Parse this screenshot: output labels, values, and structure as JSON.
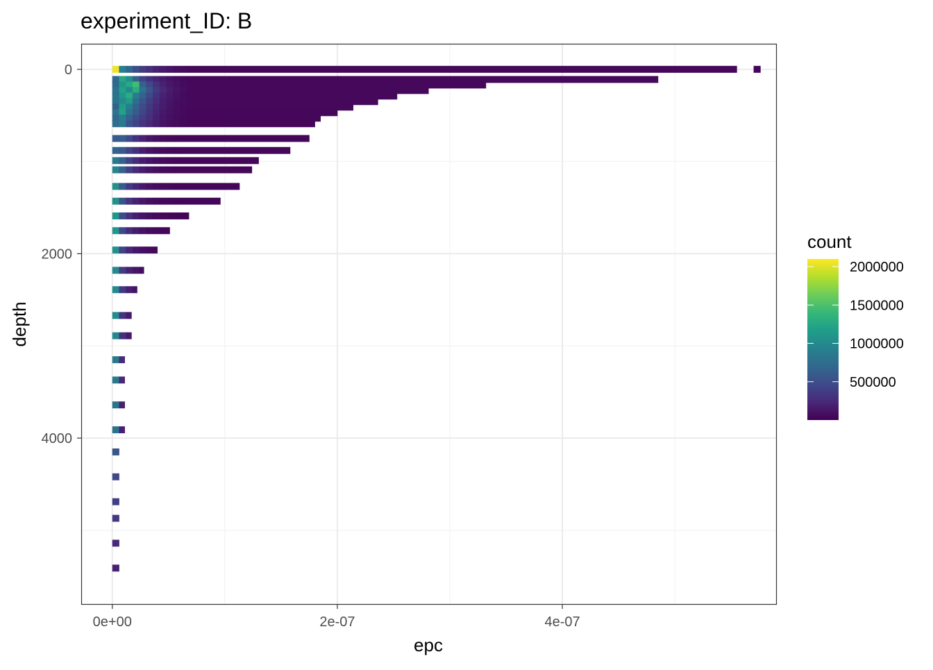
{
  "chart_data": {
    "type": "heatmap",
    "title": "experiment_ID: B",
    "xlabel": "epc",
    "ylabel": "depth",
    "xlim": [
      -2.7e-08,
      5.9e-07
    ],
    "ylim": [
      5800,
      -270
    ],
    "y_reversed": true,
    "grid": true,
    "x_ticks": [
      0,
      2e-07,
      4e-07
    ],
    "x_tick_labels": [
      "0e+00",
      "2e-07",
      "4e-07"
    ],
    "x_minor_ticks": [
      1e-07,
      3e-07,
      5e-07
    ],
    "y_ticks": [
      0,
      2000,
      4000
    ],
    "y_tick_labels": [
      "0",
      "2000",
      "4000"
    ],
    "y_minor_ticks": [
      1000,
      3000,
      5000
    ],
    "bin_width_epc": 6e-09,
    "bin_height_depth": 75,
    "legend": {
      "title": "count",
      "position": "right",
      "colormap": "viridis",
      "range": [
        0,
        2100000
      ],
      "ticks": [
        500000,
        1000000,
        1500000,
        2000000
      ],
      "tick_labels": [
        "500000",
        "1000000",
        "1500000",
        "2000000"
      ]
    },
    "rows": [
      {
        "depth": 0,
        "max_epc": 5.55e-07,
        "counts": [
          2050000,
          900000,
          700000,
          500000,
          380000,
          280000,
          200000,
          150000,
          110000,
          80000,
          60000,
          45000
        ]
      },
      {
        "depth": 110,
        "max_epc": 4.85e-07,
        "counts": [
          700000,
          1250000,
          1050000,
          650000,
          420000,
          300000,
          210000,
          150000,
          105000,
          75000,
          55000,
          40000
        ]
      },
      {
        "depth": 170,
        "max_epc": 3.32e-07,
        "counts": [
          700000,
          1100000,
          1250000,
          1450000,
          650000,
          450000,
          300000,
          200000,
          140000,
          95000,
          65000,
          45000
        ]
      },
      {
        "depth": 230,
        "max_epc": 2.81e-07,
        "counts": [
          800000,
          1200000,
          1000000,
          1300000,
          800000,
          550000,
          360000,
          240000,
          160000,
          110000,
          75000,
          50000
        ]
      },
      {
        "depth": 290,
        "max_epc": 2.53e-07,
        "counts": [
          800000,
          1100000,
          1300000,
          900000,
          650000,
          450000,
          300000,
          200000,
          140000,
          95000,
          65000,
          45000
        ]
      },
      {
        "depth": 350,
        "max_epc": 2.36e-07,
        "counts": [
          800000,
          1000000,
          1150000,
          750000,
          550000,
          390000,
          260000,
          175000,
          120000,
          85000,
          60000,
          42000
        ]
      },
      {
        "depth": 410,
        "max_epc": 2.14e-07,
        "counts": [
          650000,
          1150000,
          900000,
          650000,
          480000,
          340000,
          230000,
          160000,
          110000,
          80000,
          56000,
          40000
        ]
      },
      {
        "depth": 470,
        "max_epc": 2e-07,
        "counts": [
          800000,
          1200000,
          800000,
          600000,
          440000,
          310000,
          210000,
          145000,
          100000,
          72000,
          52000,
          38000
        ]
      },
      {
        "depth": 530,
        "max_epc": 1.85e-07,
        "counts": [
          700000,
          900000,
          650000,
          500000,
          380000,
          280000,
          190000,
          130000,
          90000,
          65000,
          48000,
          35000
        ]
      },
      {
        "depth": 590,
        "max_epc": 1.8e-07,
        "counts": [
          750000,
          850000,
          550000,
          420000,
          310000,
          230000,
          160000,
          110000,
          80000,
          58000,
          42000,
          32000
        ]
      },
      {
        "depth": 750,
        "max_epc": 1.75e-07,
        "counts": [
          600000,
          620000,
          450000,
          300000,
          200000,
          130000,
          90000,
          65000,
          48000,
          38000
        ]
      },
      {
        "depth": 880,
        "max_epc": 1.58e-07,
        "counts": [
          650000,
          600000,
          420000,
          280000,
          180000,
          120000,
          85000,
          62000,
          46000,
          36000
        ]
      },
      {
        "depth": 990,
        "max_epc": 1.3e-07,
        "counts": [
          850000,
          650000,
          420000,
          260000,
          170000,
          115000,
          80000,
          58000,
          44000,
          34000
        ]
      },
      {
        "depth": 1090,
        "max_epc": 1.24e-07,
        "counts": [
          950000,
          650000,
          400000,
          250000,
          160000,
          110000,
          78000,
          56000,
          42000,
          33000
        ]
      },
      {
        "depth": 1270,
        "max_epc": 1.13e-07,
        "counts": [
          1050000,
          600000,
          350000,
          220000,
          140000,
          95000,
          68000,
          50000,
          38000,
          30000
        ]
      },
      {
        "depth": 1430,
        "max_epc": 9.6e-08,
        "counts": [
          1050000,
          550000,
          320000,
          200000,
          130000,
          88000,
          62000,
          46000,
          35000,
          28000
        ]
      },
      {
        "depth": 1590,
        "max_epc": 6.8e-08,
        "counts": [
          1100000,
          500000,
          300000,
          180000,
          115000,
          78000,
          55000,
          40000,
          30000,
          24000
        ]
      },
      {
        "depth": 1750,
        "max_epc": 5.1e-08,
        "counts": [
          1100000,
          450000,
          260000,
          160000,
          100000,
          68000,
          48000,
          35000,
          27000,
          22000
        ]
      },
      {
        "depth": 1960,
        "max_epc": 4e-08,
        "counts": [
          1050000,
          420000,
          230000,
          140000,
          90000,
          60000,
          43000,
          32000,
          25000,
          20000
        ]
      },
      {
        "depth": 2180,
        "max_epc": 2.8e-08,
        "counts": [
          1000000,
          380000,
          200000,
          120000,
          80000,
          55000,
          40000
        ]
      },
      {
        "depth": 2390,
        "max_epc": 2.2e-08,
        "counts": [
          1000000,
          350000,
          180000,
          110000,
          72000,
          50000
        ]
      },
      {
        "depth": 2670,
        "max_epc": 1.7e-08,
        "counts": [
          1000000,
          320000,
          160000,
          100000,
          65000
        ]
      },
      {
        "depth": 2890,
        "max_epc": 1.7e-08,
        "counts": [
          1000000,
          300000,
          150000,
          90000,
          60000
        ]
      },
      {
        "depth": 3150,
        "max_epc": 1.1e-08,
        "counts": [
          850000,
          250000,
          120000
        ]
      },
      {
        "depth": 3370,
        "max_epc": 1.1e-08,
        "counts": [
          850000,
          230000,
          110000
        ]
      },
      {
        "depth": 3640,
        "max_epc": 1.1e-08,
        "counts": [
          800000,
          200000,
          100000
        ]
      },
      {
        "depth": 3910,
        "max_epc": 1.1e-08,
        "counts": [
          800000,
          190000,
          100000
        ]
      },
      {
        "depth": 4150,
        "max_epc": 6e-09,
        "counts": [
          550000
        ]
      },
      {
        "depth": 4420,
        "max_epc": 6e-09,
        "counts": [
          450000
        ]
      },
      {
        "depth": 4690,
        "max_epc": 6e-09,
        "counts": [
          400000
        ]
      },
      {
        "depth": 4870,
        "max_epc": 6e-09,
        "counts": [
          350000
        ]
      },
      {
        "depth": 5140,
        "max_epc": 6e-09,
        "counts": [
          250000
        ]
      },
      {
        "depth": 5410,
        "max_epc": 6e-09,
        "counts": [
          200000
        ]
      }
    ],
    "extra_bins": [
      {
        "depth": 0,
        "epc": 5.7e-07,
        "count": 30000
      }
    ]
  }
}
